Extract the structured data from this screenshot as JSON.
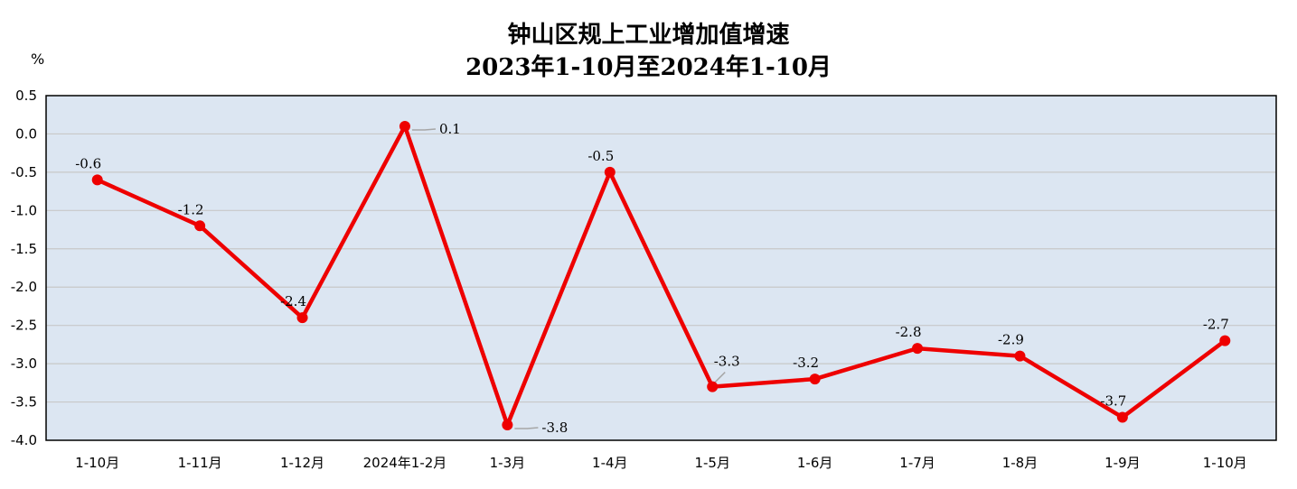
{
  "chart_data": {
    "type": "line",
    "title": "钟山区规上工业增加值增速",
    "subtitle": "2023年1-10月至2024年1-10月",
    "ylabel": "%",
    "xlabel": "",
    "categories": [
      "1-10月",
      "1-11月",
      "1-12月",
      "2024年1-2月",
      "1-3月",
      "1-4月",
      "1-5月",
      "1-6月",
      "1-7月",
      "1-8月",
      "1-9月",
      "1-10月"
    ],
    "series": [
      {
        "values": [
          -0.6,
          -1.2,
          -2.4,
          0.1,
          -3.8,
          -0.5,
          -3.3,
          -3.2,
          -2.8,
          -2.9,
          -3.7,
          -2.7
        ]
      }
    ],
    "data_labels": [
      "-0.6",
      "-1.2",
      "-2.4",
      "0.1",
      "-3.8",
      "-0.5",
      "-3.3",
      "-3.2",
      "-2.8",
      "-2.9",
      "-3.7",
      "-2.7"
    ],
    "yticks": [
      "0.5",
      "0.0",
      "-0.5",
      "-1.0",
      "-1.5",
      "-2.0",
      "-2.5",
      "-3.0",
      "-3.5",
      "-4.0"
    ],
    "ylim": [
      -4.0,
      0.5
    ],
    "grid": true,
    "legend": "none",
    "colors": {
      "line": "#ee0000",
      "plot_bg": "#dce6f2",
      "grid": "#c8c8c8",
      "leader": "#a6a6a6"
    }
  }
}
